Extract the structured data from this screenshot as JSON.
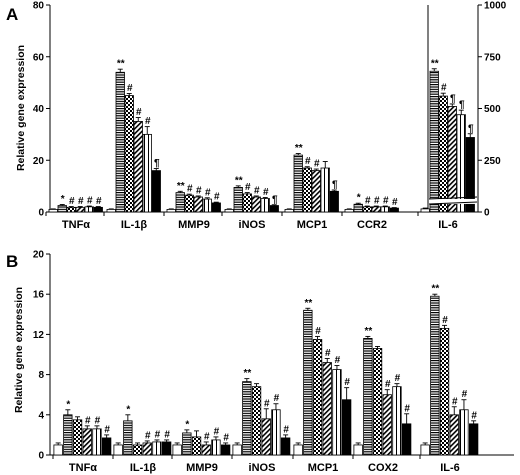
{
  "chart_data": [
    {
      "panel": "A",
      "type": "bar",
      "ylabel": "Relative gene expression",
      "ylim": [
        0,
        80
      ],
      "yticks": [
        0,
        20,
        40,
        60,
        80
      ],
      "categories": [
        "TNFα",
        "IL-1β",
        "MMP9",
        "iNOS",
        "MCP1",
        "CCR2",
        "IL-6"
      ],
      "secondary_axis": {
        "applies_to": "IL-6",
        "ylim": [
          0,
          1000
        ],
        "yticks": [
          0,
          250,
          500,
          750,
          1000
        ],
        "axis_break": true
      },
      "groups": [
        {
          "category": "TNFα",
          "values": [
            1,
            2.5,
            1.8,
            1.8,
            2.0,
            1.8
          ],
          "errors": [
            0.2,
            0.4,
            0.3,
            0.3,
            0.3,
            0.3
          ],
          "labels": [
            "",
            "*",
            "#",
            "#",
            "#",
            "#"
          ]
        },
        {
          "category": "IL-1β",
          "values": [
            1,
            54,
            45,
            35,
            30,
            16
          ],
          "errors": [
            0.2,
            1.2,
            0.8,
            1.5,
            3.0,
            0.8
          ],
          "labels": [
            "",
            "**",
            "#",
            "#",
            "#",
            "¶"
          ]
        },
        {
          "category": "MMP9",
          "values": [
            1,
            7.5,
            6.5,
            5.8,
            5.0,
            3.5
          ],
          "errors": [
            0.2,
            0.5,
            0.4,
            0.4,
            0.5,
            0.3
          ],
          "labels": [
            "",
            "**",
            "#",
            "#",
            "#",
            "#"
          ]
        },
        {
          "category": "iNOS",
          "values": [
            1,
            9.5,
            7.0,
            5.8,
            5.2,
            2.5
          ],
          "errors": [
            0.2,
            0.6,
            0.5,
            0.4,
            0.4,
            0.3
          ],
          "labels": [
            "",
            "**",
            "#",
            "#",
            "#",
            "¶"
          ]
        },
        {
          "category": "MCP1",
          "values": [
            1,
            22,
            17,
            16,
            17,
            8
          ],
          "errors": [
            0.2,
            0.6,
            0.5,
            0.6,
            2.5,
            0.5
          ],
          "labels": [
            "",
            "**",
            "#",
            "#",
            "",
            "¶"
          ]
        },
        {
          "category": "CCR2",
          "values": [
            1,
            3.0,
            2.0,
            2.0,
            2.0,
            1.5
          ],
          "errors": [
            0.2,
            0.4,
            0.3,
            0.3,
            0.3,
            0.2
          ],
          "labels": [
            "",
            "*",
            "#",
            "#",
            "#",
            "#"
          ]
        },
        {
          "category": "IL-6",
          "values": [
            15,
            680,
            560,
            510,
            470,
            360
          ],
          "errors": [
            4,
            12,
            14,
            12,
            22,
            18
          ],
          "labels": [
            "",
            "**",
            "#",
            "¶",
            "¶",
            "¶"
          ],
          "axis": "secondary"
        }
      ]
    },
    {
      "panel": "B",
      "type": "bar",
      "ylabel": "Relative gene expression",
      "ylim": [
        0,
        20
      ],
      "yticks": [
        0,
        4,
        8,
        12,
        16,
        20
      ],
      "categories": [
        "TNFα",
        "IL-1β",
        "MMP9",
        "iNOS",
        "MCP1",
        "COX2",
        "IL-6"
      ],
      "groups": [
        {
          "category": "TNFα",
          "values": [
            1,
            4.0,
            3.5,
            2.6,
            2.6,
            1.7
          ],
          "errors": [
            0.2,
            0.5,
            0.3,
            0.3,
            0.3,
            0.3
          ],
          "labels": [
            "",
            "*",
            "",
            "#",
            "#",
            "#"
          ]
        },
        {
          "category": "IL-1β",
          "values": [
            1,
            3.4,
            1.0,
            1.2,
            1.3,
            1.3
          ],
          "errors": [
            0.2,
            0.6,
            0.2,
            0.2,
            0.2,
            0.2
          ],
          "labels": [
            "",
            "*",
            "",
            "#",
            "#",
            "#"
          ]
        },
        {
          "category": "MMP9",
          "values": [
            1,
            2.2,
            1.8,
            1.0,
            1.5,
            1.0
          ],
          "errors": [
            0.2,
            0.3,
            0.6,
            0.3,
            0.3,
            0.2
          ],
          "labels": [
            "",
            "*",
            "",
            "#",
            "#",
            "#"
          ]
        },
        {
          "category": "iNOS",
          "values": [
            1,
            7.3,
            6.8,
            3.6,
            4.5,
            1.7
          ],
          "errors": [
            0.2,
            0.3,
            0.3,
            1.0,
            0.6,
            0.3
          ],
          "labels": [
            "",
            "**",
            "",
            "#",
            "#",
            "#"
          ]
        },
        {
          "category": "MCP1",
          "values": [
            1,
            14.4,
            11.5,
            9.2,
            8.5,
            5.5
          ],
          "errors": [
            0.2,
            0.2,
            0.3,
            0.4,
            0.4,
            1.2
          ],
          "labels": [
            "",
            "**",
            "#",
            "#",
            "#",
            "#"
          ]
        },
        {
          "category": "COX2",
          "values": [
            1,
            11.6,
            10.6,
            6.0,
            6.8,
            3.1
          ],
          "errors": [
            0.2,
            0.2,
            0.2,
            0.5,
            0.3,
            1.0
          ],
          "labels": [
            "",
            "**",
            "",
            "#",
            "#",
            "#"
          ]
        },
        {
          "category": "IL-6",
          "values": [
            1,
            15.8,
            12.6,
            4.0,
            4.5,
            3.1
          ],
          "errors": [
            0.2,
            0.2,
            0.3,
            0.8,
            1.0,
            0.3
          ],
          "labels": [
            "",
            "**",
            "#",
            "#",
            "#",
            "#"
          ]
        }
      ]
    }
  ],
  "panels": {
    "A": {
      "label": "A",
      "ylabel": "Relative gene expression"
    },
    "B": {
      "label": "B",
      "ylabel": "Relative gene expression"
    }
  },
  "bar_patterns": [
    "open",
    "horizontal-lines",
    "checker",
    "diagonal-lines",
    "vertical-lines",
    "solid"
  ]
}
